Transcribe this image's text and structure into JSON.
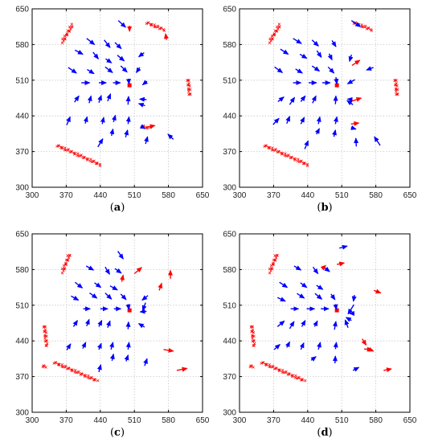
{
  "colors": {
    "blue": "#0000ff",
    "red": "#ff0000",
    "grid": "#c8c8c8",
    "axis": "#000000"
  },
  "chart_data": [
    {
      "type": "scatter",
      "caption": {
        "prefix": "(",
        "label": "a",
        "suffix": ")"
      },
      "xlim": [
        300,
        650
      ],
      "ylim": [
        300,
        650
      ],
      "xticks": [
        "300",
        "370",
        "440",
        "510",
        "580",
        "650"
      ],
      "yticks": [
        "300",
        "370",
        "440",
        "510",
        "580",
        "650"
      ],
      "grid": true,
      "center": [
        500,
        500
      ],
      "clusters": [
        {
          "x1": 362,
          "y1": 585,
          "x2": 383,
          "y2": 619
        },
        {
          "x1": 535,
          "y1": 623,
          "x2": 571,
          "y2": 609
        },
        {
          "x1": 620,
          "y1": 512,
          "x2": 624,
          "y2": 480
        },
        {
          "x1": 351,
          "y1": 382,
          "x2": 440,
          "y2": 344
        },
        {
          "x1": 525,
          "y1": 420,
          "x2": 541,
          "y2": 416
        }
      ],
      "arrows_blue": [
        [
          477,
          627,
          492,
          614
        ],
        [
          412,
          592,
          428,
          580
        ],
        [
          448,
          589,
          460,
          574
        ],
        [
          470,
          584,
          483,
          572
        ],
        [
          388,
          569,
          404,
          561
        ],
        [
          425,
          565,
          436,
          552
        ],
        [
          451,
          552,
          463,
          544
        ],
        [
          475,
          559,
          489,
          548
        ],
        [
          530,
          564,
          519,
          556
        ],
        [
          374,
          535,
          391,
          524
        ],
        [
          413,
          531,
          427,
          523
        ],
        [
          450,
          536,
          465,
          525
        ],
        [
          482,
          538,
          495,
          526
        ],
        [
          521,
          535,
          514,
          525
        ],
        [
          401,
          505,
          418,
          505
        ],
        [
          437,
          505,
          452,
          505
        ],
        [
          466,
          505,
          481,
          505
        ],
        [
          498,
          513,
          499,
          503
        ],
        [
          536,
          508,
          527,
          501
        ],
        [
          387,
          467,
          396,
          479
        ],
        [
          417,
          465,
          421,
          479
        ],
        [
          437,
          466,
          442,
          480
        ],
        [
          455,
          469,
          461,
          483
        ],
        [
          497,
          462,
          498,
          478
        ],
        [
          532,
          460,
          519,
          464
        ],
        [
          535,
          472,
          521,
          473
        ],
        [
          371,
          422,
          378,
          438
        ],
        [
          409,
          425,
          413,
          438
        ],
        [
          444,
          424,
          447,
          437
        ],
        [
          467,
          428,
          471,
          441
        ],
        [
          497,
          424,
          499,
          438
        ],
        [
          435,
          379,
          445,
          395
        ],
        [
          463,
          401,
          466,
          414
        ],
        [
          492,
          398,
          496,
          412
        ],
        [
          533,
          385,
          537,
          399
        ],
        [
          590,
          394,
          579,
          404
        ],
        [
          523,
          420,
          532,
          415
        ]
      ],
      "arrows_red": [
        [
          500,
          617,
          500,
          606
        ],
        [
          576,
          589,
          574,
          601
        ],
        [
          537,
          418,
          552,
          421
        ]
      ]
    },
    {
      "type": "scatter",
      "caption": {
        "prefix": "(",
        "label": "b",
        "suffix": ")"
      },
      "xlim": [
        300,
        650
      ],
      "ylim": [
        300,
        650
      ],
      "xticks": [
        "300",
        "370",
        "440",
        "510",
        "580",
        "650"
      ],
      "yticks": [
        "300",
        "370",
        "440",
        "510",
        "580",
        "650"
      ],
      "grid": true,
      "center": [
        500,
        500
      ],
      "clusters": [
        {
          "x1": 362,
          "y1": 585,
          "x2": 383,
          "y2": 619
        },
        {
          "x1": 535,
          "y1": 623,
          "x2": 571,
          "y2": 609
        },
        {
          "x1": 620,
          "y1": 512,
          "x2": 624,
          "y2": 480
        },
        {
          "x1": 351,
          "y1": 382,
          "x2": 440,
          "y2": 344
        }
      ],
      "arrows_blue": [
        [
          530,
          627,
          548,
          615
        ],
        [
          410,
          592,
          427,
          582
        ],
        [
          449,
          589,
          462,
          577
        ],
        [
          490,
          588,
          498,
          576
        ],
        [
          384,
          571,
          400,
          561
        ],
        [
          424,
          561,
          438,
          553
        ],
        [
          459,
          568,
          468,
          555
        ],
        [
          484,
          562,
          490,
          550
        ],
        [
          530,
          560,
          526,
          547
        ],
        [
          372,
          536,
          388,
          525
        ],
        [
          415,
          532,
          429,
          524
        ],
        [
          449,
          538,
          464,
          528
        ],
        [
          482,
          536,
          494,
          524
        ],
        [
          575,
          535,
          561,
          530
        ],
        [
          410,
          505,
          426,
          505
        ],
        [
          442,
          505,
          458,
          505
        ],
        [
          470,
          505,
          486,
          505
        ],
        [
          498,
          516,
          500,
          503
        ],
        [
          537,
          511,
          522,
          503
        ],
        [
          379,
          468,
          391,
          477
        ],
        [
          403,
          462,
          413,
          476
        ],
        [
          426,
          468,
          435,
          479
        ],
        [
          450,
          465,
          457,
          479
        ],
        [
          497,
          463,
          498,
          479
        ],
        [
          533,
          462,
          521,
          470
        ],
        [
          532,
          472,
          522,
          473
        ],
        [
          369,
          423,
          381,
          435
        ],
        [
          397,
          425,
          403,
          439
        ],
        [
          426,
          424,
          433,
          437
        ],
        [
          462,
          424,
          465,
          438
        ],
        [
          497,
          424,
          500,
          438
        ],
        [
          434,
          375,
          441,
          391
        ],
        [
          458,
          404,
          464,
          415
        ],
        [
          494,
          399,
          497,
          412
        ],
        [
          540,
          380,
          539,
          396
        ],
        [
          589,
          382,
          577,
          399
        ],
        [
          529,
          417,
          539,
          414
        ]
      ],
      "arrows_red": [
        [
          531,
          539,
          547,
          549
        ],
        [
          531,
          469,
          550,
          475
        ],
        [
          529,
          424,
          545,
          426
        ]
      ]
    },
    {
      "type": "scatter",
      "caption": {
        "prefix": "(",
        "label": "c",
        "suffix": ")"
      },
      "xlim": [
        300,
        650
      ],
      "ylim": [
        300,
        650
      ],
      "xticks": [
        "300",
        "370",
        "440",
        "510",
        "580",
        "650"
      ],
      "yticks": [
        "300",
        "370",
        "440",
        "510",
        "580",
        "650"
      ],
      "grid": true,
      "center": [
        500,
        500
      ],
      "clusters": [
        {
          "x1": 362,
          "y1": 575,
          "x2": 377,
          "y2": 610
        },
        {
          "x1": 325,
          "y1": 470,
          "x2": 330,
          "y2": 430
        },
        {
          "x1": 345,
          "y1": 398,
          "x2": 433,
          "y2": 362
        },
        {
          "x1": 322,
          "y1": 391,
          "x2": 327,
          "y2": 389
        }
      ],
      "arrows_blue": [
        [
          476,
          616,
          487,
          601
        ],
        [
          411,
          587,
          426,
          579
        ],
        [
          450,
          585,
          459,
          571
        ],
        [
          470,
          582,
          483,
          573
        ],
        [
          388,
          555,
          403,
          544
        ],
        [
          428,
          554,
          441,
          545
        ],
        [
          460,
          548,
          475,
          540
        ],
        [
          380,
          528,
          395,
          520
        ],
        [
          418,
          534,
          433,
          524
        ],
        [
          450,
          534,
          463,
          522
        ],
        [
          482,
          532,
          493,
          521
        ],
        [
          538,
          529,
          526,
          520
        ],
        [
          405,
          503,
          419,
          503
        ],
        [
          440,
          503,
          455,
          503
        ],
        [
          468,
          503,
          482,
          503
        ],
        [
          497,
          512,
          499,
          502
        ],
        [
          533,
          515,
          527,
          500
        ],
        [
          535,
          498,
          522,
          497
        ],
        [
          385,
          468,
          393,
          480
        ],
        [
          412,
          469,
          417,
          482
        ],
        [
          437,
          468,
          443,
          480
        ],
        [
          455,
          466,
          460,
          479
        ],
        [
          497,
          463,
          498,
          477
        ],
        [
          531,
          467,
          519,
          474
        ],
        [
          371,
          422,
          379,
          434
        ],
        [
          404,
          425,
          410,
          437
        ],
        [
          437,
          423,
          442,
          435
        ],
        [
          462,
          423,
          466,
          437
        ],
        [
          497,
          423,
          499,
          437
        ],
        [
          437,
          379,
          441,
          393
        ],
        [
          464,
          401,
          467,
          414
        ],
        [
          493,
          400,
          497,
          412
        ],
        [
          531,
          391,
          536,
          405
        ]
      ],
      "arrows_red": [
        [
          510,
          572,
          525,
          584
        ],
        [
          484,
          556,
          487,
          569
        ],
        [
          561,
          539,
          566,
          553
        ],
        [
          584,
          562,
          584,
          578
        ],
        [
          570,
          423,
          590,
          420
        ],
        [
          597,
          382,
          618,
          386
        ]
      ]
    },
    {
      "type": "scatter",
      "caption": {
        "prefix": "(",
        "label": "d",
        "suffix": ")"
      },
      "xlim": [
        300,
        650
      ],
      "ylim": [
        300,
        650
      ],
      "xticks": [
        "300",
        "370",
        "440",
        "510",
        "580",
        "650"
      ],
      "yticks": [
        "300",
        "370",
        "440",
        "510",
        "580",
        "650"
      ],
      "grid": true,
      "center": [
        500,
        500
      ],
      "clusters": [
        {
          "x1": 362,
          "y1": 575,
          "x2": 377,
          "y2": 610
        },
        {
          "x1": 325,
          "y1": 470,
          "x2": 330,
          "y2": 430
        },
        {
          "x1": 345,
          "y1": 398,
          "x2": 433,
          "y2": 362
        },
        {
          "x1": 322,
          "y1": 391,
          "x2": 327,
          "y2": 389
        }
      ],
      "arrows_blue": [
        [
          505,
          622,
          521,
          626
        ],
        [
          412,
          587,
          426,
          579
        ],
        [
          451,
          585,
          461,
          572
        ],
        [
          473,
          585,
          485,
          576
        ],
        [
          382,
          555,
          398,
          545
        ],
        [
          425,
          554,
          438,
          545
        ],
        [
          458,
          549,
          471,
          541
        ],
        [
          378,
          525,
          394,
          518
        ],
        [
          418,
          533,
          433,
          524
        ],
        [
          455,
          533,
          469,
          522
        ],
        [
          488,
          532,
          496,
          521
        ],
        [
          536,
          530,
          534,
          518
        ],
        [
          405,
          503,
          421,
          503
        ],
        [
          438,
          503,
          454,
          503
        ],
        [
          467,
          503,
          483,
          503
        ],
        [
          497,
          512,
          499,
          502
        ],
        [
          536,
          494,
          526,
          494
        ],
        [
          535,
          511,
          523,
          493
        ],
        [
          530,
          480,
          519,
          486
        ],
        [
          378,
          468,
          392,
          479
        ],
        [
          403,
          464,
          412,
          478
        ],
        [
          428,
          468,
          435,
          480
        ],
        [
          454,
          468,
          460,
          479
        ],
        [
          495,
          462,
          498,
          478
        ],
        [
          523,
          466,
          517,
          481
        ],
        [
          371,
          423,
          383,
          433
        ],
        [
          397,
          427,
          403,
          438
        ],
        [
          426,
          423,
          432,
          436
        ],
        [
          462,
          423,
          466,
          437
        ],
        [
          497,
          424,
          499,
          437
        ],
        [
          447,
          402,
          457,
          409
        ],
        [
          496,
          396,
          497,
          410
        ],
        [
          533,
          382,
          545,
          388
        ]
      ],
      "arrows_red": [
        [
          470,
          582,
          477,
          588
        ],
        [
          500,
          590,
          515,
          593
        ],
        [
          552,
          444,
          560,
          432
        ],
        [
          576,
          539,
          590,
          534
        ],
        [
          556,
          424,
          572,
          423
        ],
        [
          562,
          425,
          575,
          420
        ],
        [
          596,
          382,
          612,
          385
        ]
      ]
    }
  ]
}
